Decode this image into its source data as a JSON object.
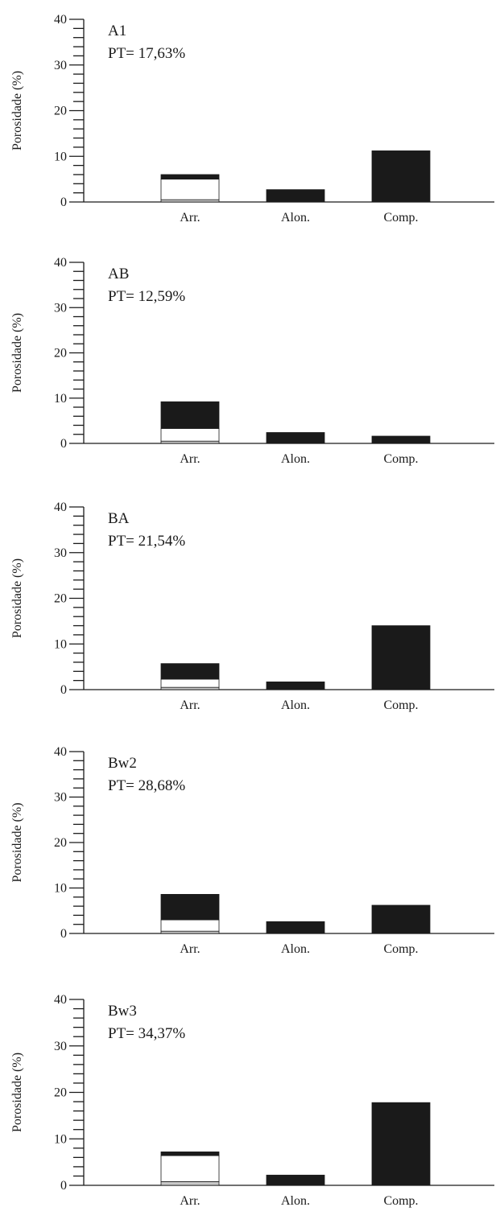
{
  "chart_data": [
    {
      "type": "bar",
      "title": "A1",
      "subtitle": "PT= 17,63%",
      "ylabel": "Porosidade (%)",
      "ylim": [
        0,
        40
      ],
      "yticks": [
        "0",
        "10",
        "20",
        "30",
        "40"
      ],
      "categories": [
        "Arr.",
        "Alon.",
        "Comp."
      ],
      "stacked": true,
      "series": [
        {
          "color": "#c8c8c8",
          "values": [
            0.5,
            0,
            0
          ]
        },
        {
          "color": "#ffffff",
          "values": [
            4.5,
            0,
            0
          ]
        },
        {
          "color": "#1a1a1a",
          "values": [
            1.0,
            2.7,
            11.2
          ]
        }
      ]
    },
    {
      "type": "bar",
      "title": "AB",
      "subtitle": "PT= 12,59%",
      "ylabel": "Porosidade (%)",
      "ylim": [
        0,
        40
      ],
      "yticks": [
        "0",
        "10",
        "20",
        "30",
        "40"
      ],
      "categories": [
        "Arr.",
        "Alon.",
        "Comp."
      ],
      "stacked": true,
      "series": [
        {
          "color": "#c8c8c8",
          "values": [
            0.5,
            0,
            0
          ]
        },
        {
          "color": "#ffffff",
          "values": [
            2.8,
            0,
            0
          ]
        },
        {
          "color": "#1a1a1a",
          "values": [
            5.9,
            2.4,
            1.6
          ]
        }
      ]
    },
    {
      "type": "bar",
      "title": "BA",
      "subtitle": "PT= 21,54%",
      "ylabel": "Porosidade (%)",
      "ylim": [
        0,
        40
      ],
      "yticks": [
        "0",
        "10",
        "20",
        "30",
        "40"
      ],
      "categories": [
        "Arr.",
        "Alon.",
        "Comp."
      ],
      "stacked": true,
      "series": [
        {
          "color": "#c8c8c8",
          "values": [
            0.5,
            0,
            0
          ]
        },
        {
          "color": "#ffffff",
          "values": [
            1.8,
            0,
            0
          ]
        },
        {
          "color": "#1a1a1a",
          "values": [
            3.4,
            1.7,
            14.0
          ]
        }
      ]
    },
    {
      "type": "bar",
      "title": "Bw2",
      "subtitle": "PT= 28,68%",
      "ylabel": "Porosidade (%)",
      "ylim": [
        0,
        40
      ],
      "yticks": [
        "0",
        "10",
        "20",
        "30",
        "40"
      ],
      "categories": [
        "Arr.",
        "Alon.",
        "Comp."
      ],
      "stacked": true,
      "series": [
        {
          "color": "#c8c8c8",
          "values": [
            0.5,
            0,
            0
          ]
        },
        {
          "color": "#ffffff",
          "values": [
            2.5,
            0,
            0
          ]
        },
        {
          "color": "#1a1a1a",
          "values": [
            5.6,
            2.6,
            6.2
          ]
        }
      ]
    },
    {
      "type": "bar",
      "title": "Bw3",
      "subtitle": "PT= 34,37%",
      "ylabel": "Porosidade (%)",
      "ylim": [
        0,
        40
      ],
      "yticks": [
        "0",
        "10",
        "20",
        "30",
        "40"
      ],
      "categories": [
        "Arr.",
        "Alon.",
        "Comp."
      ],
      "stacked": true,
      "series": [
        {
          "color": "#c8c8c8",
          "values": [
            0.8,
            0,
            0
          ]
        },
        {
          "color": "#ffffff",
          "values": [
            5.6,
            0,
            0
          ]
        },
        {
          "color": "#1a1a1a",
          "values": [
            0.8,
            2.2,
            17.8
          ]
        }
      ]
    }
  ]
}
